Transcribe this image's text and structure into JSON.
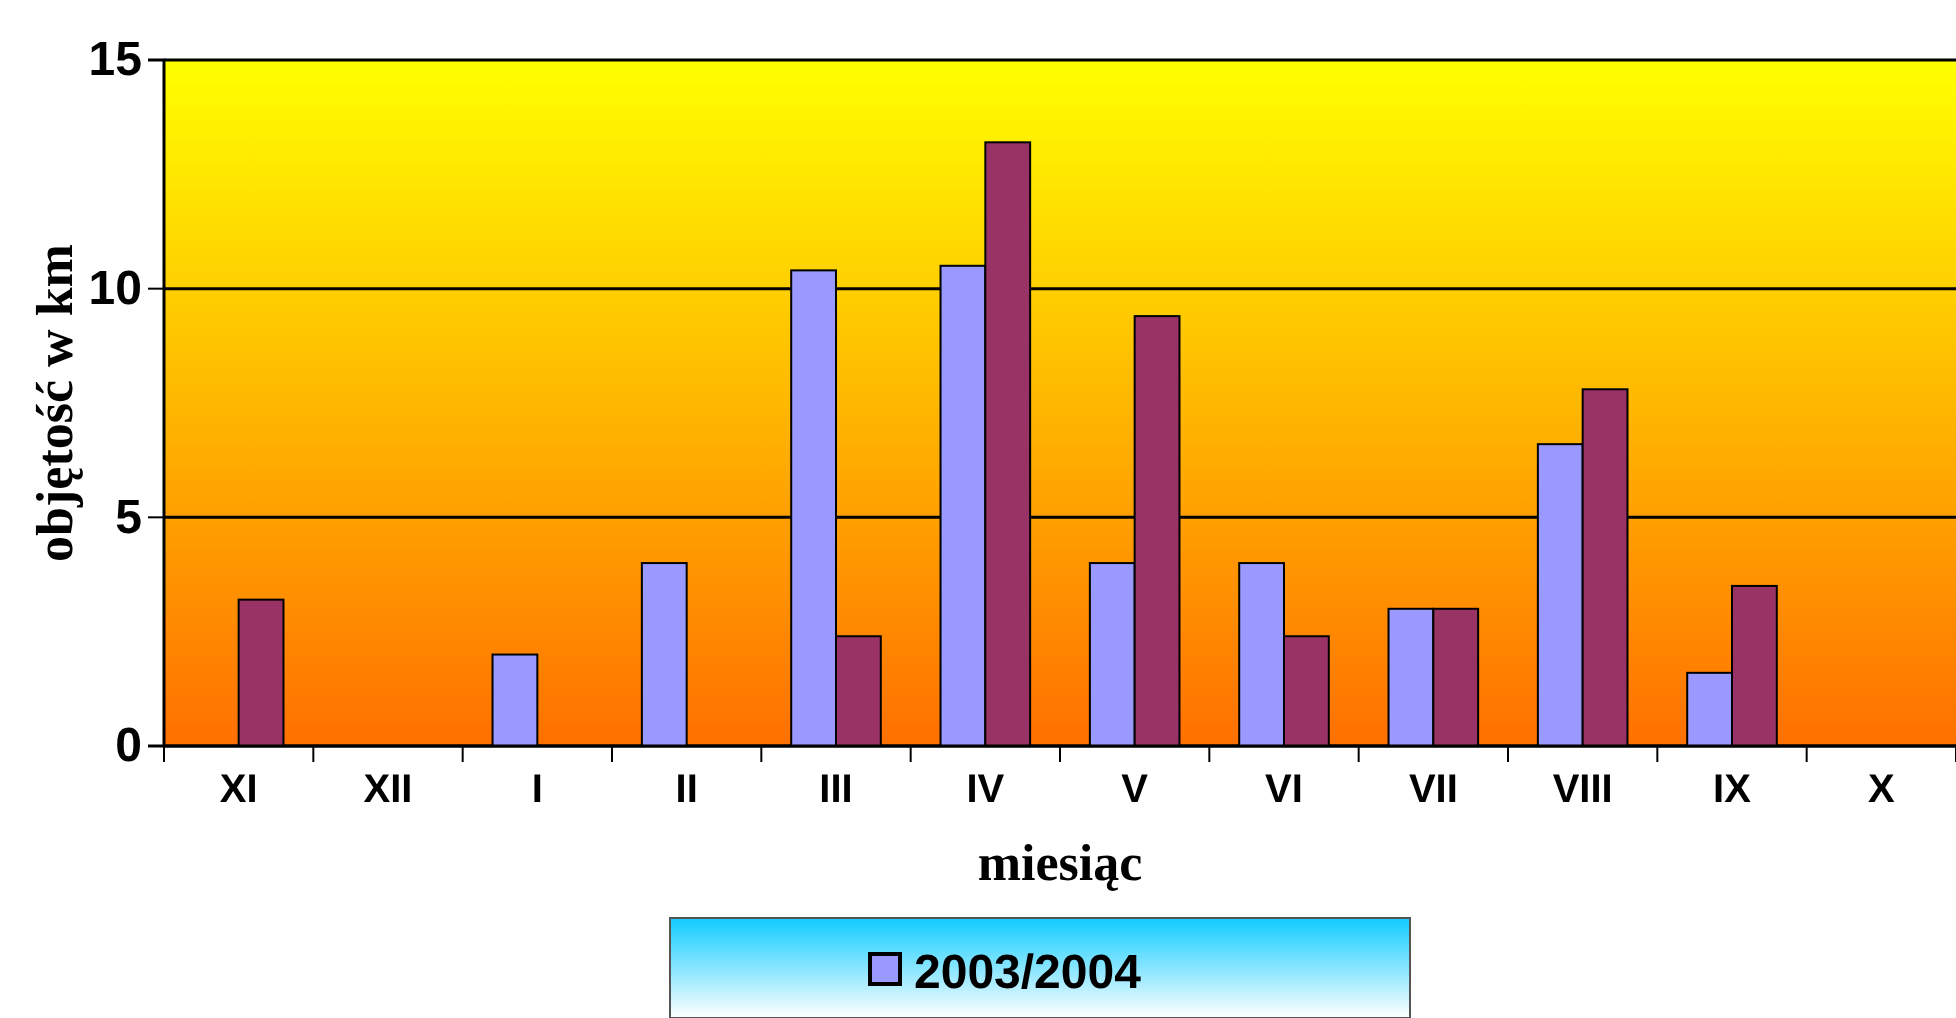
{
  "chart_data": {
    "type": "bar",
    "xlabel": "miesiąc",
    "ylabel": "objętość w km",
    "categories": [
      "XI",
      "XII",
      "I",
      "II",
      "III",
      "IV",
      "V",
      "VI",
      "VII",
      "VIII",
      "IX",
      "X"
    ],
    "series": [
      {
        "name": "2003/2004",
        "color": "#9999ff",
        "values": [
          0,
          0,
          2,
          4,
          10.4,
          10.5,
          4,
          4,
          3,
          6.6,
          1.6,
          0
        ]
      },
      {
        "color": "#993366",
        "values": [
          3.2,
          0,
          0,
          0,
          2.4,
          13.2,
          9.4,
          2.4,
          3,
          7.8,
          3.5,
          0
        ]
      }
    ],
    "ylim": [
      0,
      15
    ],
    "yticks": [
      0,
      5,
      10,
      15
    ],
    "grid": "y",
    "legend": "bottom"
  }
}
